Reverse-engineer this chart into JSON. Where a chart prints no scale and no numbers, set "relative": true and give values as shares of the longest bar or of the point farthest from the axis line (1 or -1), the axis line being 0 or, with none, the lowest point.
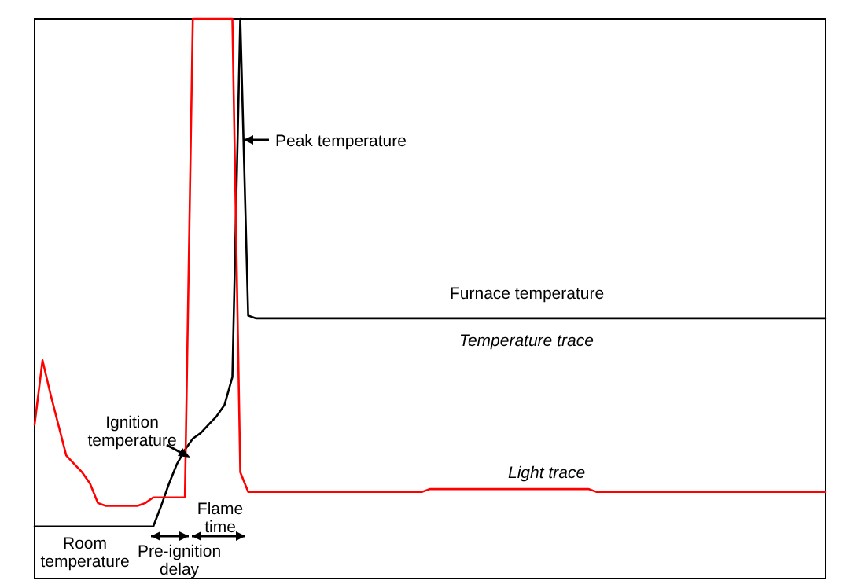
{
  "chart_data": {
    "type": "line",
    "relative": true,
    "categories": [
      null,
      null,
      null,
      null,
      null,
      null,
      null,
      null,
      null,
      null,
      null,
      null,
      null,
      null,
      null,
      null,
      null,
      null,
      null,
      null,
      null,
      null,
      null,
      null,
      null,
      null,
      null,
      null,
      null,
      null,
      null,
      null,
      null,
      null,
      null,
      null,
      null,
      null,
      null,
      null,
      null,
      null,
      null,
      null,
      null,
      null,
      null,
      null,
      null,
      null,
      null,
      null,
      null,
      null,
      null,
      null,
      null,
      null,
      null,
      null,
      null,
      null,
      null,
      null,
      null,
      null,
      null,
      null,
      null,
      null,
      null,
      null,
      null,
      null,
      null,
      null,
      null,
      null,
      null,
      null,
      null,
      null,
      null,
      null,
      null,
      null,
      null,
      null,
      null,
      null,
      null,
      null,
      null,
      null,
      null,
      null,
      null,
      null,
      null,
      null,
      null
    ],
    "series": [
      {
        "name": "Temperature trace",
        "color": "#000000",
        "values": [
          0.093,
          0.093,
          0.093,
          0.093,
          0.093,
          0.093,
          0.093,
          0.093,
          0.093,
          0.093,
          0.093,
          0.093,
          0.093,
          0.093,
          0.093,
          0.093,
          0.13,
          0.17,
          0.205,
          0.23,
          0.25,
          0.26,
          0.275,
          0.29,
          0.31,
          0.36,
          1,
          0.47,
          0.465,
          0.465,
          0.465,
          0.465,
          0.465,
          0.465,
          0.465,
          0.465,
          0.465,
          0.465,
          0.465,
          0.465,
          0.465,
          0.465,
          0.465,
          0.465,
          0.465,
          0.465,
          0.465,
          0.465,
          0.465,
          0.465,
          0.465,
          0.465,
          0.465,
          0.465,
          0.465,
          0.465,
          0.465,
          0.465,
          0.465,
          0.465,
          0.465,
          0.465,
          0.465,
          0.465,
          0.465,
          0.465,
          0.465,
          0.465,
          0.465,
          0.465,
          0.465,
          0.465,
          0.465,
          0.465,
          0.465,
          0.465,
          0.465,
          0.465,
          0.465,
          0.465,
          0.465,
          0.465,
          0.465,
          0.465,
          0.465,
          0.465,
          0.465,
          0.465,
          0.465,
          0.465,
          0.465,
          0.465,
          0.465,
          0.465,
          0.465,
          0.465,
          0.465,
          0.465,
          0.465,
          0.465,
          0.465
        ]
      },
      {
        "name": "Light trace",
        "color": "#ff0000",
        "values": [
          0.275,
          0.39,
          0.33,
          0.275,
          0.22,
          0.205,
          0.19,
          0.17,
          0.135,
          0.13,
          0.13,
          0.13,
          0.13,
          0.13,
          0.135,
          0.145,
          0.145,
          0.145,
          0.145,
          0.145,
          1,
          1,
          1,
          1,
          1,
          1,
          0.19,
          0.155,
          0.155,
          0.155,
          0.155,
          0.155,
          0.155,
          0.155,
          0.155,
          0.155,
          0.155,
          0.155,
          0.155,
          0.155,
          0.155,
          0.155,
          0.155,
          0.155,
          0.155,
          0.155,
          0.155,
          0.155,
          0.155,
          0.155,
          0.16,
          0.16,
          0.16,
          0.16,
          0.16,
          0.16,
          0.16,
          0.16,
          0.16,
          0.16,
          0.16,
          0.16,
          0.16,
          0.16,
          0.16,
          0.16,
          0.16,
          0.16,
          0.16,
          0.16,
          0.16,
          0.155,
          0.155,
          0.155,
          0.155,
          0.155,
          0.155,
          0.155,
          0.155,
          0.155,
          0.155,
          0.155,
          0.155,
          0.155,
          0.155,
          0.155,
          0.155,
          0.155,
          0.155,
          0.155,
          0.155,
          0.155,
          0.155,
          0.155,
          0.155,
          0.155,
          0.155,
          0.155,
          0.155,
          0.155,
          0.155
        ]
      }
    ],
    "annotations": [
      "Peak temperature",
      "Furnace temperature",
      "Ignition temperature",
      "Room temperature",
      "Pre-ignition delay",
      "Flame time"
    ]
  }
}
